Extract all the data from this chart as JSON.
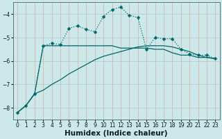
{
  "xlabel": "Humidex (Indice chaleur)",
  "bg_color": "#cce8e8",
  "grid_color_major": "#aacccc",
  "grid_color_minor": "#ffaaaa",
  "line_color": "#006868",
  "ylim": [
    -8.5,
    -3.5
  ],
  "xlim": [
    -0.5,
    23.5
  ],
  "yticks": [
    -8,
    -7,
    -6,
    -5,
    -4
  ],
  "xticks": [
    0,
    1,
    2,
    3,
    4,
    5,
    6,
    7,
    8,
    9,
    10,
    11,
    12,
    13,
    14,
    15,
    16,
    17,
    18,
    19,
    20,
    21,
    22,
    23
  ],
  "x": [
    0,
    1,
    2,
    3,
    4,
    5,
    6,
    7,
    8,
    9,
    10,
    11,
    12,
    13,
    14,
    15,
    16,
    17,
    18,
    19,
    20,
    21,
    22,
    23
  ],
  "curve_top": [
    -8.2,
    -7.9,
    -7.4,
    -5.35,
    -5.25,
    -5.3,
    -4.6,
    -4.5,
    -4.65,
    -4.75,
    -4.1,
    -3.8,
    -3.7,
    -4.05,
    -4.15,
    -5.5,
    -5.0,
    -5.05,
    -5.05,
    -5.5,
    -5.7,
    -5.75,
    -5.75,
    -5.9
  ],
  "curve_mid": [
    -8.2,
    -7.9,
    -7.4,
    -5.35,
    -5.35,
    -5.35,
    -5.35,
    -5.35,
    -5.35,
    -5.35,
    -5.35,
    -5.35,
    -5.45,
    -5.45,
    -5.45,
    -5.45,
    -5.5,
    -5.5,
    -5.65,
    -5.75,
    -5.75,
    -5.85,
    -5.85,
    -5.9
  ],
  "curve_diag": [
    -8.2,
    -7.9,
    -7.4,
    -7.25,
    -7.0,
    -6.8,
    -6.55,
    -6.35,
    -6.15,
    -5.95,
    -5.8,
    -5.7,
    -5.6,
    -5.5,
    -5.4,
    -5.35,
    -5.35,
    -5.35,
    -5.4,
    -5.5,
    -5.6,
    -5.75,
    -5.85,
    -5.9
  ],
  "linewidth": 0.9,
  "marker_size": 2.5,
  "tick_fontsize": 5.5,
  "label_fontsize": 7.5
}
